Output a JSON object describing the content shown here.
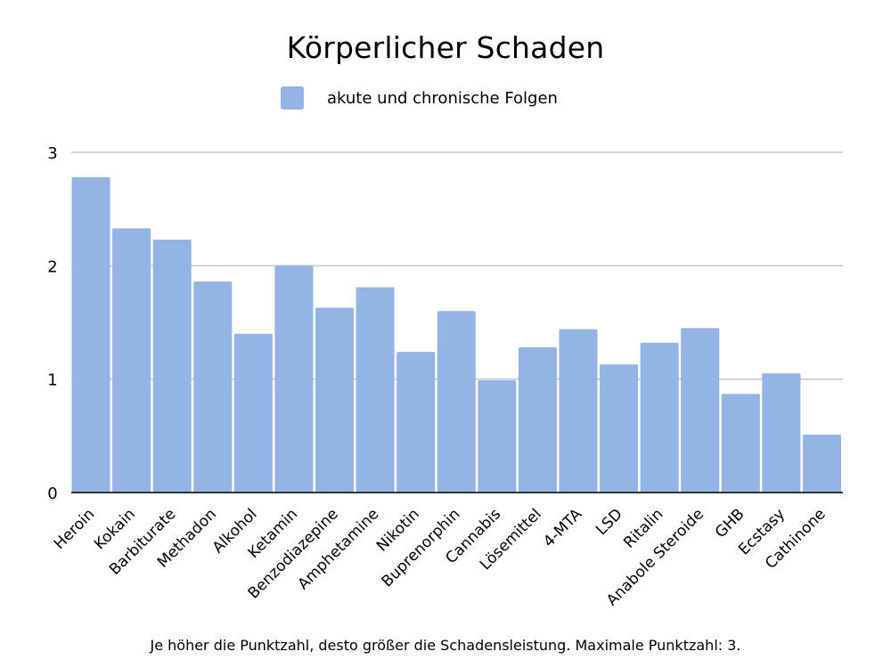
{
  "chart_data": {
    "type": "bar",
    "title": "Körperlicher Schaden",
    "xlabel": "",
    "ylabel": "",
    "ylim": [
      0,
      3
    ],
    "yticks": [
      0,
      1,
      2,
      3
    ],
    "grid": true,
    "legend_position": "top",
    "categories": [
      "Heroin",
      "Kokain",
      "Barbiturate",
      "Methadon",
      "Alkohol",
      "Ketamin",
      "Benzodiazepine",
      "Amphetamine",
      "Nikotin",
      "Buprenorphin",
      "Cannabis",
      "Lösemittel",
      "4-MTA",
      "LSD",
      "Ritalin",
      "Anabole Steroide",
      "GHB",
      "Ecstasy",
      "Cathinone"
    ],
    "series": [
      {
        "name": "akute und chronische Folgen",
        "color": "#94b4e6",
        "values": [
          2.78,
          2.33,
          2.23,
          1.86,
          1.4,
          2.0,
          1.63,
          1.81,
          1.24,
          1.6,
          0.99,
          1.28,
          1.44,
          1.13,
          1.32,
          1.45,
          0.87,
          1.05,
          0.51
        ]
      }
    ],
    "footnote": "Je höher die Punktzahl, desto größer die Schadensleistung. Maximale Punktzahl: 3."
  }
}
